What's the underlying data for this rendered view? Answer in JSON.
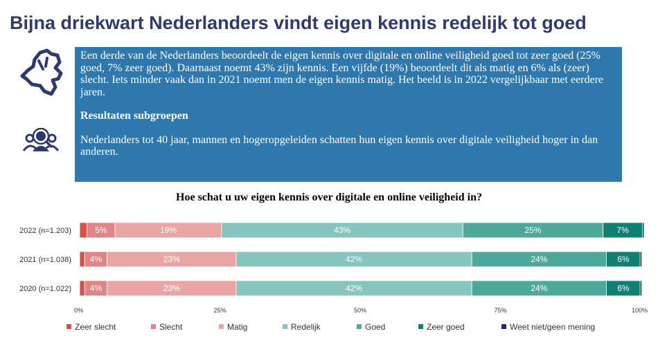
{
  "title": "Bijna driekwart Nederlanders vindt eigen kennis redelijk tot goed",
  "info": {
    "paragraph": "Een derde van de Nederlanders beoordeelt de eigen kennis over digitale en online veiligheid goed tot zeer goed (25% goed, 7% zeer goed). Daarnaast noemt 43% zijn kennis. Een vijfde (19%) beoordeelt dit als matig en 6% als (zeer) slecht. Iets minder vaak dan in 2021 noemt men de eigen kennis matig. Het beeld is in 2022 vergelijkbaar met eerdere jaren.",
    "subgroups_heading": "Resultaten subgroepen",
    "subgroups_text": "Nederlanders tot 40 jaar, mannen en hogeropgeleiden schatten hun eigen kennis over digitale veiligheid hoger in dan anderen.",
    "icons": [
      "netherlands-map-icon",
      "people-group-icon"
    ],
    "box_color": "#2e78ad"
  },
  "chart_data": {
    "type": "bar",
    "orientation": "horizontal",
    "stacked": true,
    "title": "Hoe schat u uw eigen kennis over digitale en online veiligheid in?",
    "categories": [
      "2022 (n=1.203)",
      "2021 (n=1.038)",
      "2020 (n=1.022)"
    ],
    "series": [
      {
        "name": "Zeer slecht",
        "color": "#d94f4a",
        "values": [
          1.3,
          0.9,
          0.9
        ],
        "labels": [
          "",
          "",
          ""
        ]
      },
      {
        "name": "Slecht",
        "color": "#e08585",
        "values": [
          5,
          4,
          4
        ],
        "labels": [
          "5%",
          "4%",
          "4%"
        ]
      },
      {
        "name": "Matig",
        "color": "#e8a5a3",
        "values": [
          19,
          23,
          23
        ],
        "labels": [
          "19%",
          "23%",
          "23%"
        ]
      },
      {
        "name": "Redelijk",
        "color": "#86c5bd",
        "values": [
          43,
          42,
          42
        ],
        "labels": [
          "43%",
          "42%",
          "42%"
        ]
      },
      {
        "name": "Goed",
        "color": "#4ea99b",
        "values": [
          25,
          24,
          24
        ],
        "labels": [
          "25%",
          "24%",
          "24%"
        ]
      },
      {
        "name": "Zeer goed",
        "color": "#0e7f70",
        "values": [
          7,
          6,
          6
        ],
        "labels": [
          "7%",
          "6%",
          "6%"
        ]
      },
      {
        "name": "Weet niet/geen mening",
        "color": "#1f2a56",
        "values": [
          0.3,
          0.3,
          0.3
        ],
        "labels": [
          "",
          "",
          ""
        ]
      }
    ],
    "xlim": [
      0,
      100
    ],
    "xticks": [
      "0%",
      "25%",
      "50%",
      "75%",
      "100%"
    ],
    "grid": false,
    "legend": "bottom"
  }
}
